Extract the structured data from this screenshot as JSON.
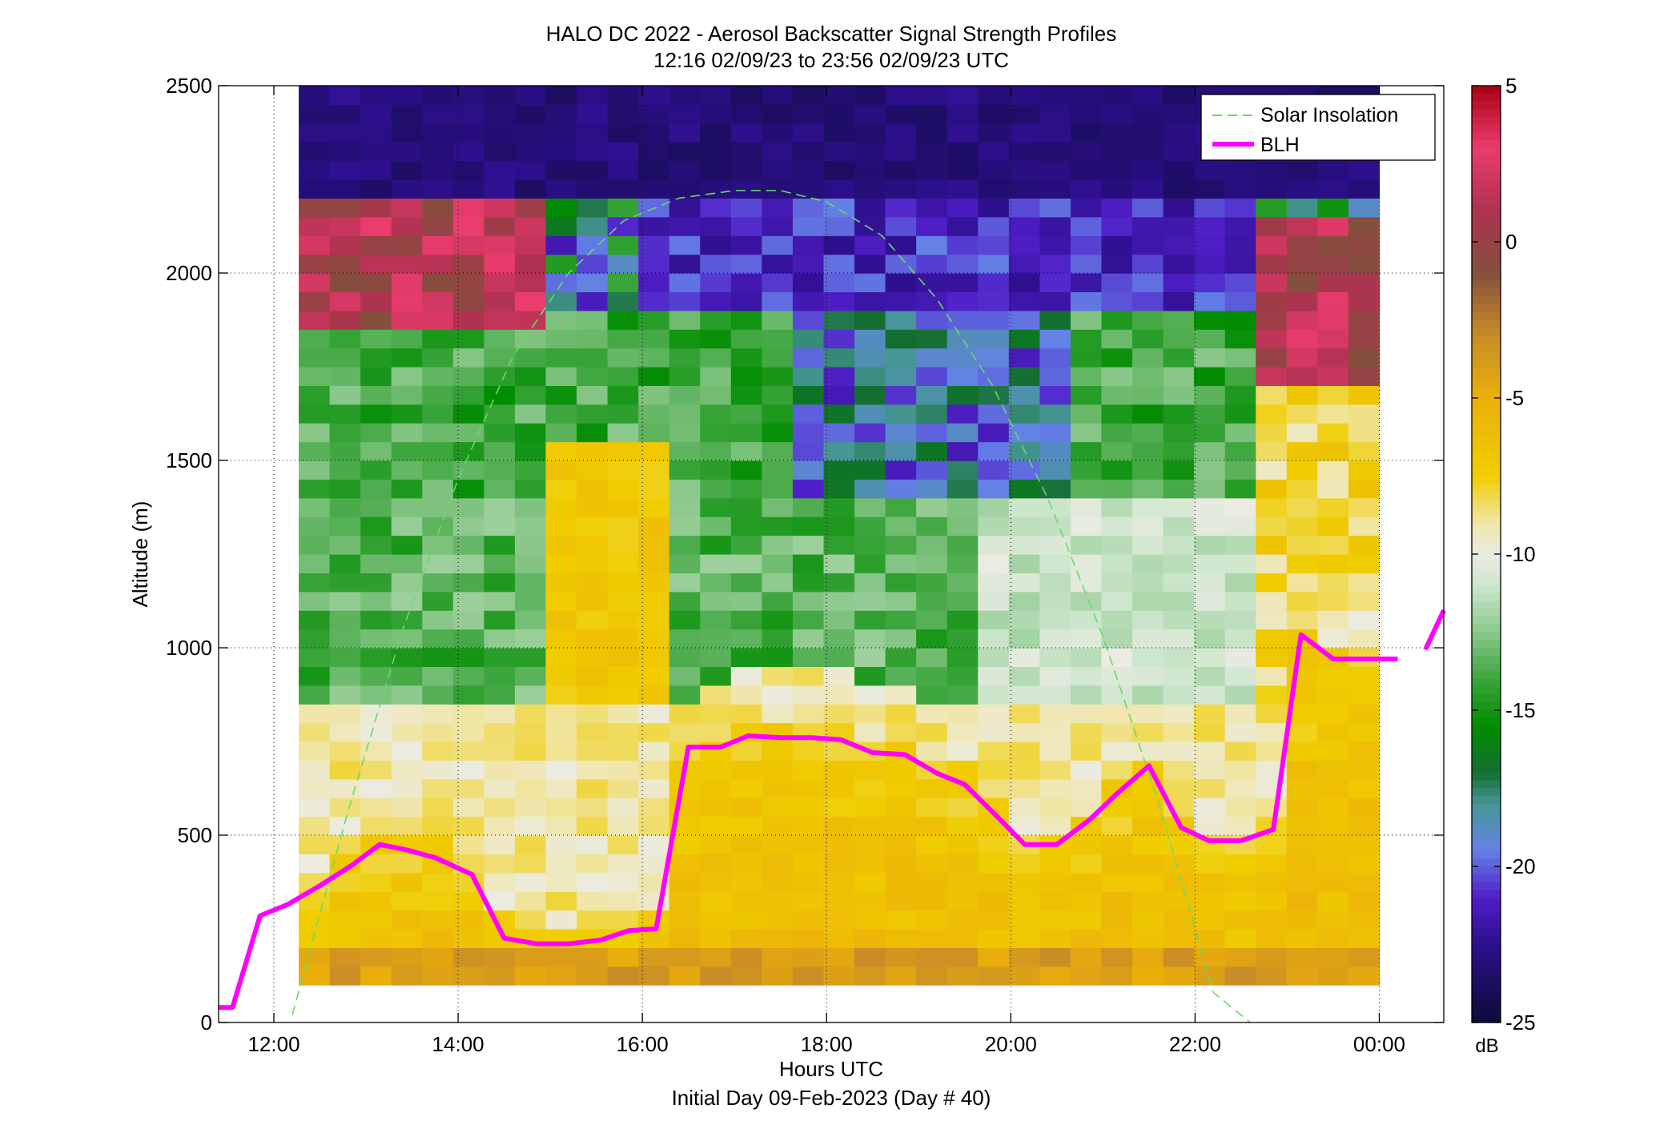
{
  "chart_data": {
    "type": "heatmap",
    "title": "HALO DC 2022 - Aerosol Backscatter Signal Strength Profiles",
    "subtitle": "12:16 02/09/23 to 23:56 02/09/23  UTC",
    "xlabel": "Hours UTC",
    "xlabel2": "Initial Day 09-Feb-2023 (Day # 40)",
    "ylabel": "Altitude (m)",
    "xlim": [
      11.4,
      24.7
    ],
    "ylim": [
      0,
      2500
    ],
    "x_ticks": [
      12,
      14,
      16,
      18,
      20,
      22,
      24
    ],
    "x_tick_labels": [
      "12:00",
      "14:00",
      "16:00",
      "18:00",
      "20:00",
      "22:00",
      "00:00"
    ],
    "y_ticks": [
      0,
      500,
      1000,
      1500,
      2000,
      2500
    ],
    "y_tick_labels": [
      "0",
      "500",
      "1000",
      "1500",
      "2000",
      "2500"
    ],
    "grid": true,
    "legend_position": "top-right",
    "colorbar": {
      "label": "dB",
      "range": [
        -25,
        5
      ],
      "ticks": [
        5,
        0,
        -5,
        -10,
        -15,
        -20,
        -25
      ],
      "tick_labels": [
        "5",
        "0",
        "-5",
        "-10",
        "-15",
        "-20",
        "-25"
      ]
    },
    "heatmap": {
      "x_start": 12.27,
      "x_end": 24.0,
      "y_bottom": 100,
      "y_top": 2500,
      "n_cols": 35,
      "n_rows": 48,
      "description_values_db": "signal strength per cell; computed by region"
    },
    "series": [
      {
        "name": "Solar Insolation",
        "style": "dashed",
        "color": "#66dd66",
        "x": [
          12.2,
          12.8,
          13.4,
          14.0,
          14.6,
          15.2,
          15.8,
          16.4,
          17.0,
          17.5,
          18.0,
          18.6,
          19.2,
          19.8,
          20.4,
          21.0,
          21.6,
          22.2,
          22.6
        ],
        "y": [
          20,
          560,
          1050,
          1450,
          1780,
          2000,
          2140,
          2200,
          2220,
          2220,
          2190,
          2100,
          1930,
          1700,
          1400,
          1030,
          590,
          80,
          0
        ]
      },
      {
        "name": "BLH",
        "style": "solid",
        "color": "#ff00ff",
        "segments": [
          {
            "x": [
              11.4,
              11.55,
              11.85,
              12.15,
              12.5,
              12.85,
              13.15,
              13.45,
              13.75,
              14.15,
              14.5,
              14.85,
              15.2,
              15.55,
              15.85,
              16.15,
              16.5,
              16.85,
              17.15,
              17.5,
              17.85,
              18.15,
              18.5,
              18.85,
              19.2,
              19.5,
              19.85,
              20.15,
              20.5,
              20.85,
              21.15,
              21.5,
              21.85,
              22.15,
              22.5,
              22.85,
              23.15,
              23.5,
              23.85,
              24.2
            ],
            "y": [
              40,
              40,
              285,
              315,
              365,
              420,
              475,
              460,
              440,
              395,
              225,
              210,
              210,
              220,
              245,
              250,
              735,
              735,
              765,
              760,
              760,
              755,
              720,
              715,
              665,
              635,
              550,
              475,
              475,
              540,
              610,
              685,
              520,
              485,
              485,
              515,
              1035,
              970,
              970,
              970
            ]
          },
          {
            "x": [
              24.5,
              24.7
            ],
            "y": [
              995,
              1100
            ]
          }
        ]
      }
    ]
  }
}
